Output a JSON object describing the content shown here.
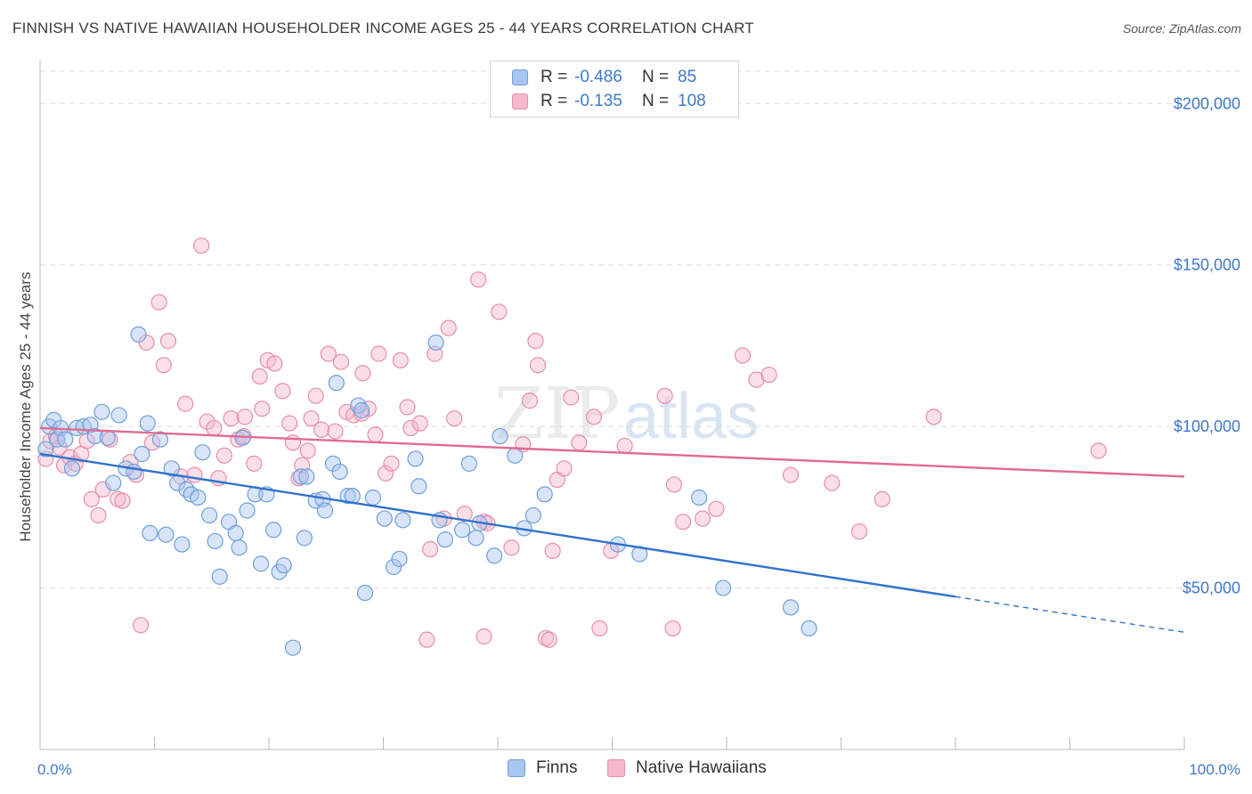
{
  "header": {
    "title": "FINNISH VS NATIVE HAWAIIAN HOUSEHOLDER INCOME AGES 25 - 44 YEARS CORRELATION CHART",
    "source": "Source: ZipAtlas.com"
  },
  "watermark": {
    "zip": "ZIP",
    "atlas": "atlas"
  },
  "legend": {
    "rows": [
      {
        "r_label": "R =",
        "r_value": "-0.486",
        "n_label": "N =",
        "n_value": "85"
      },
      {
        "r_label": "R =",
        "r_value": "-0.135",
        "n_label": "N =",
        "n_value": "108"
      }
    ]
  },
  "bottom_legend": {
    "finns": "Finns",
    "hawaiians": "Native Hawaiians"
  },
  "colors": {
    "finns_fill": "#a9c6ef",
    "finns_stroke": "#6f9fdc",
    "finns_line": "#2f72cc",
    "hawaiian_fill": "#f6b8cb",
    "hawaiian_stroke": "#e78ea9",
    "hawaiian_line": "#e06a92",
    "tick_text": "#3f78c9",
    "grid": "#dcdcdc"
  },
  "chart_data": {
    "type": "scatter",
    "title": "FINNISH VS NATIVE HAWAIIAN HOUSEHOLDER INCOME AGES 25 - 44 YEARS CORRELATION CHART",
    "xlabel": "",
    "ylabel": "Householder Income Ages 25 - 44 years",
    "xlim": [
      0,
      100
    ],
    "ylim": [
      0,
      210000
    ],
    "x_tick_labels": [
      "0.0%",
      "100.0%"
    ],
    "y_ticks": [
      50000,
      100000,
      150000,
      200000
    ],
    "y_tick_labels": [
      "$50,000",
      "$100,000",
      "$150,000",
      "$200,000"
    ],
    "grid": "horizontal dashed",
    "legend_position": "top-center",
    "series": [
      {
        "name": "Finns",
        "trend": {
          "x_solid": [
            0,
            80
          ],
          "y_solid": [
            91500,
            47300
          ],
          "x_dashed": [
            80,
            100
          ],
          "y_dashed": [
            47300,
            36300
          ]
        },
        "points": [
          [
            0.5,
            93000
          ],
          [
            0.8,
            100000
          ],
          [
            1.2,
            102000
          ],
          [
            1.5,
            96000
          ],
          [
            1.8,
            99500
          ],
          [
            2.2,
            96000
          ],
          [
            2.8,
            87000
          ],
          [
            3.2,
            99500
          ],
          [
            3.8,
            100000
          ],
          [
            4.4,
            100500
          ],
          [
            4.8,
            97000
          ],
          [
            5.4,
            104500
          ],
          [
            5.9,
            96500
          ],
          [
            6.4,
            82500
          ],
          [
            6.9,
            103500
          ],
          [
            7.5,
            87000
          ],
          [
            8.2,
            86000
          ],
          [
            8.6,
            128500
          ],
          [
            8.9,
            91500
          ],
          [
            9.4,
            101000
          ],
          [
            9.6,
            67000
          ],
          [
            10.5,
            96000
          ],
          [
            11,
            66500
          ],
          [
            11.5,
            87000
          ],
          [
            12,
            82500
          ],
          [
            12.4,
            63500
          ],
          [
            12.8,
            80500
          ],
          [
            13.2,
            79000
          ],
          [
            13.8,
            78000
          ],
          [
            14.2,
            92000
          ],
          [
            14.8,
            72500
          ],
          [
            15.3,
            64500
          ],
          [
            15.7,
            53500
          ],
          [
            16.5,
            70500
          ],
          [
            17.1,
            67000
          ],
          [
            17.4,
            62500
          ],
          [
            17.7,
            96500
          ],
          [
            18.1,
            74000
          ],
          [
            18.8,
            79000
          ],
          [
            19.3,
            57500
          ],
          [
            19.8,
            79000
          ],
          [
            20.4,
            68000
          ],
          [
            20.9,
            55000
          ],
          [
            21.3,
            57000
          ],
          [
            22.1,
            31500
          ],
          [
            22.8,
            84500
          ],
          [
            23.1,
            65500
          ],
          [
            23.3,
            84500
          ],
          [
            24.1,
            77000
          ],
          [
            24.7,
            77500
          ],
          [
            24.9,
            74000
          ],
          [
            25.6,
            88500
          ],
          [
            25.9,
            113500
          ],
          [
            26.2,
            86000
          ],
          [
            26.9,
            78500
          ],
          [
            27.3,
            78500
          ],
          [
            27.8,
            106500
          ],
          [
            28.1,
            105000
          ],
          [
            28.4,
            48500
          ],
          [
            29.1,
            78000
          ],
          [
            30.1,
            71500
          ],
          [
            30.9,
            56500
          ],
          [
            31.4,
            59000
          ],
          [
            31.7,
            71000
          ],
          [
            32.8,
            90000
          ],
          [
            33.1,
            81500
          ],
          [
            34.6,
            126000
          ],
          [
            34.9,
            71000
          ],
          [
            35.4,
            65000
          ],
          [
            36.9,
            68000
          ],
          [
            37.5,
            88500
          ],
          [
            38.1,
            65500
          ],
          [
            38.4,
            70000
          ],
          [
            39.7,
            60000
          ],
          [
            40.2,
            97000
          ],
          [
            41.5,
            91000
          ],
          [
            42.3,
            68500
          ],
          [
            43.1,
            72500
          ],
          [
            44.1,
            79000
          ],
          [
            50.5,
            63500
          ],
          [
            52.4,
            60500
          ],
          [
            57.6,
            78000
          ],
          [
            59.7,
            50000
          ],
          [
            65.6,
            44000
          ],
          [
            67.2,
            37500
          ]
        ]
      },
      {
        "name": "Native Hawaiians",
        "trend": {
          "x": [
            0,
            100
          ],
          "y": [
            99500,
            84500
          ]
        },
        "points": [
          [
            0.5,
            90000
          ],
          [
            0.9,
            95500
          ],
          [
            1.4,
            97000
          ],
          [
            1.7,
            93500
          ],
          [
            2.1,
            88000
          ],
          [
            2.6,
            90500
          ],
          [
            3.1,
            88500
          ],
          [
            3.6,
            91500
          ],
          [
            4.1,
            95500
          ],
          [
            4.5,
            77500
          ],
          [
            5.1,
            72500
          ],
          [
            5.5,
            80500
          ],
          [
            6.1,
            96000
          ],
          [
            6.8,
            77500
          ],
          [
            7.2,
            77000
          ],
          [
            7.9,
            89000
          ],
          [
            8.4,
            85000
          ],
          [
            8.8,
            38500
          ],
          [
            9.3,
            126000
          ],
          [
            9.8,
            95000
          ],
          [
            10.4,
            138500
          ],
          [
            10.8,
            119000
          ],
          [
            11.2,
            126500
          ],
          [
            12.3,
            84500
          ],
          [
            12.7,
            107000
          ],
          [
            13.5,
            85000
          ],
          [
            14.1,
            156000
          ],
          [
            14.6,
            101500
          ],
          [
            15.2,
            99500
          ],
          [
            15.6,
            84000
          ],
          [
            16.1,
            91000
          ],
          [
            16.7,
            102500
          ],
          [
            17.3,
            96000
          ],
          [
            17.8,
            97000
          ],
          [
            17.9,
            103000
          ],
          [
            18.7,
            88500
          ],
          [
            19.2,
            115500
          ],
          [
            19.4,
            105500
          ],
          [
            19.9,
            120500
          ],
          [
            20.5,
            119500
          ],
          [
            21.2,
            111000
          ],
          [
            21.8,
            101000
          ],
          [
            22.1,
            95000
          ],
          [
            22.6,
            84000
          ],
          [
            22.9,
            88000
          ],
          [
            23.4,
            92500
          ],
          [
            23.7,
            102500
          ],
          [
            24.1,
            109500
          ],
          [
            24.6,
            99000
          ],
          [
            25.2,
            122500
          ],
          [
            25.8,
            98500
          ],
          [
            26.3,
            120000
          ],
          [
            26.8,
            104500
          ],
          [
            27.4,
            103500
          ],
          [
            28.2,
            116500
          ],
          [
            28.7,
            105500
          ],
          [
            29.3,
            97500
          ],
          [
            29.6,
            122500
          ],
          [
            30.2,
            85500
          ],
          [
            30.7,
            88500
          ],
          [
            31.5,
            120500
          ],
          [
            32.1,
            106000
          ],
          [
            32.4,
            99500
          ],
          [
            33.2,
            101000
          ],
          [
            34.1,
            62000
          ],
          [
            34.5,
            122500
          ],
          [
            35.3,
            71500
          ],
          [
            35.7,
            130500
          ],
          [
            36.2,
            102500
          ],
          [
            37.1,
            73000
          ],
          [
            38.3,
            145500
          ],
          [
            38.8,
            70500
          ],
          [
            39.1,
            70000
          ],
          [
            40.1,
            135500
          ],
          [
            41.2,
            62500
          ],
          [
            42.2,
            94500
          ],
          [
            42.8,
            108000
          ],
          [
            43.3,
            126500
          ],
          [
            43.5,
            119000
          ],
          [
            44.2,
            34500
          ],
          [
            44.8,
            61500
          ],
          [
            45.2,
            83500
          ],
          [
            45.8,
            87000
          ],
          [
            46.4,
            109000
          ],
          [
            47.1,
            95000
          ],
          [
            48.4,
            103000
          ],
          [
            48.9,
            37500
          ],
          [
            49.9,
            61500
          ],
          [
            51.1,
            94000
          ],
          [
            54.6,
            109500
          ],
          [
            55.4,
            82000
          ],
          [
            56.2,
            70500
          ],
          [
            57.9,
            71500
          ],
          [
            59.1,
            74500
          ],
          [
            61.4,
            122000
          ],
          [
            62.6,
            114500
          ],
          [
            63.7,
            116000
          ],
          [
            65.6,
            85000
          ],
          [
            69.2,
            82500
          ],
          [
            71.6,
            67500
          ],
          [
            73.6,
            77500
          ],
          [
            78.1,
            103000
          ],
          [
            92.5,
            92500
          ],
          [
            38.8,
            35000
          ],
          [
            44.5,
            34000
          ],
          [
            55.3,
            37500
          ],
          [
            28.1,
            104000
          ],
          [
            33.8,
            34000
          ]
        ]
      }
    ]
  }
}
